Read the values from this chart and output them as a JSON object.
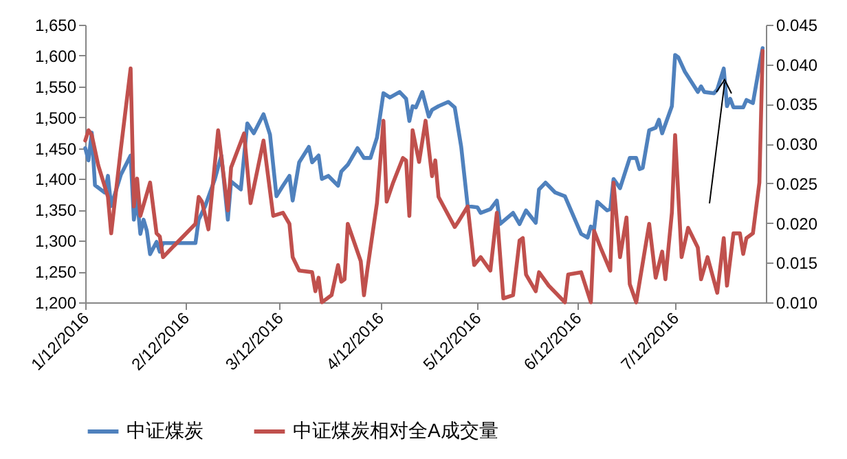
{
  "chart_data": {
    "type": "line",
    "legend": "bottom",
    "grid": false,
    "marker": "none",
    "line_style": "solid",
    "xlim": [
      "2016-01-12",
      "2016-08-09"
    ],
    "xticks": [
      {
        "value": "2016-01-12",
        "label": "1/12/2016"
      },
      {
        "value": "2016-02-12",
        "label": "2/12/2016"
      },
      {
        "value": "2016-03-12",
        "label": "3/12/2016"
      },
      {
        "value": "2016-04-12",
        "label": "4/12/2016"
      },
      {
        "value": "2016-05-12",
        "label": "5/12/2016"
      },
      {
        "value": "2016-06-12",
        "label": "6/12/2016"
      },
      {
        "value": "2016-07-12",
        "label": "7/12/2016"
      }
    ],
    "ylim": [
      1200,
      1650
    ],
    "yticks": [
      {
        "value": 1200,
        "label": "1,200"
      },
      {
        "value": 1250,
        "label": "1,250"
      },
      {
        "value": 1300,
        "label": "1,300"
      },
      {
        "value": 1350,
        "label": "1,350"
      },
      {
        "value": 1400,
        "label": "1,400"
      },
      {
        "value": 1450,
        "label": "1,450"
      },
      {
        "value": 1500,
        "label": "1,500"
      },
      {
        "value": 1550,
        "label": "1,550"
      },
      {
        "value": 1600,
        "label": "1,600"
      },
      {
        "value": 1650,
        "label": "1,650"
      }
    ],
    "y2lim": [
      0.01,
      0.045
    ],
    "y2ticks": [
      {
        "value": 0.01,
        "label": "0.010"
      },
      {
        "value": 0.015,
        "label": "0.015"
      },
      {
        "value": 0.02,
        "label": "0.020"
      },
      {
        "value": 0.025,
        "label": "0.025"
      },
      {
        "value": 0.03,
        "label": "0.030"
      },
      {
        "value": 0.035,
        "label": "0.035"
      },
      {
        "value": 0.04,
        "label": "0.040"
      },
      {
        "value": 0.045,
        "label": "0.045"
      }
    ],
    "series": [
      {
        "name": "中证煤炭",
        "color": "#4f81bd",
        "x": [
          "2016-01-12",
          "2016-01-13",
          "2016-01-14",
          "2016-01-15",
          "2016-01-18",
          "2016-01-19",
          "2016-01-20",
          "2016-01-23",
          "2016-01-26",
          "2016-01-27",
          "2016-01-28",
          "2016-01-29",
          "2016-01-30",
          "2016-01-31",
          "2016-02-01",
          "2016-02-03",
          "2016-02-04",
          "2016-02-05",
          "2016-02-15",
          "2016-02-16",
          "2016-02-18",
          "2016-02-21",
          "2016-02-23",
          "2016-02-25",
          "2016-02-26",
          "2016-02-29",
          "2016-03-02",
          "2016-03-04",
          "2016-03-07",
          "2016-03-09",
          "2016-03-11",
          "2016-03-13",
          "2016-03-15",
          "2016-03-16",
          "2016-03-18",
          "2016-03-21",
          "2016-03-22",
          "2016-03-24",
          "2016-03-25",
          "2016-03-27",
          "2016-03-30",
          "2016-03-31",
          "2016-04-02",
          "2016-04-05",
          "2016-04-07",
          "2016-04-09",
          "2016-04-11",
          "2016-04-13",
          "2016-04-15",
          "2016-04-18",
          "2016-04-20",
          "2016-04-21",
          "2016-04-22",
          "2016-04-23",
          "2016-04-25",
          "2016-04-27",
          "2016-04-28",
          "2016-04-30",
          "2016-05-03",
          "2016-05-05",
          "2016-05-07",
          "2016-05-09",
          "2016-05-12",
          "2016-05-13",
          "2016-05-16",
          "2016-05-18",
          "2016-05-19",
          "2016-05-23",
          "2016-05-25",
          "2016-05-27",
          "2016-05-30",
          "2016-05-31",
          "2016-06-02",
          "2016-06-05",
          "2016-06-08",
          "2016-06-13",
          "2016-06-15",
          "2016-06-16",
          "2016-06-17",
          "2016-06-18",
          "2016-06-21",
          "2016-06-22",
          "2016-06-23",
          "2016-06-25",
          "2016-06-28",
          "2016-06-30",
          "2016-07-01",
          "2016-07-02",
          "2016-07-04",
          "2016-07-06",
          "2016-07-07",
          "2016-07-08",
          "2016-07-11",
          "2016-07-12",
          "2016-07-13",
          "2016-07-15",
          "2016-07-19",
          "2016-07-20",
          "2016-07-21",
          "2016-07-24",
          "2016-07-25",
          "2016-07-27",
          "2016-07-28",
          "2016-07-29",
          "2016-07-30",
          "2016-08-02",
          "2016-08-03",
          "2016-08-05",
          "2016-08-07",
          "2016-08-08"
        ],
        "values": [
          1450,
          1430,
          1475,
          1390,
          1378,
          1405,
          1356,
          1407,
          1438,
          1334,
          1367,
          1311,
          1334,
          1316,
          1278,
          1298,
          1282,
          1296,
          1296,
          1334,
          1356,
          1400,
          1438,
          1334,
          1396,
          1383,
          1490,
          1474,
          1505,
          1472,
          1372,
          1389,
          1405,
          1365,
          1427,
          1452,
          1427,
          1438,
          1400,
          1405,
          1389,
          1412,
          1423,
          1450,
          1434,
          1434,
          1467,
          1539,
          1532,
          1541,
          1530,
          1494,
          1518,
          1516,
          1541,
          1501,
          1512,
          1518,
          1525,
          1516,
          1452,
          1356,
          1354,
          1345,
          1351,
          1365,
          1327,
          1345,
          1327,
          1349,
          1329,
          1383,
          1394,
          1378,
          1372,
          1311,
          1305,
          1323,
          1318,
          1363,
          1349,
          1351,
          1400,
          1385,
          1434,
          1434,
          1416,
          1418,
          1479,
          1483,
          1496,
          1474,
          1518,
          1601,
          1597,
          1574,
          1541,
          1550,
          1541,
          1539,
          1545,
          1579,
          1518,
          1530,
          1516,
          1516,
          1528,
          1523,
          1583,
          1612
        ]
      },
      {
        "name": "中证煤炭相对全A成交量",
        "color": "#c0504d",
        "axis": "y2",
        "x": [
          "2016-01-12",
          "2016-01-13",
          "2016-01-14",
          "2016-01-16",
          "2016-01-19",
          "2016-01-20",
          "2016-01-23",
          "2016-01-26",
          "2016-01-27",
          "2016-01-28",
          "2016-01-29",
          "2016-02-01",
          "2016-02-03",
          "2016-02-04",
          "2016-02-05",
          "2016-02-15",
          "2016-02-16",
          "2016-02-17",
          "2016-02-19",
          "2016-02-22",
          "2016-02-25",
          "2016-02-26",
          "2016-03-01",
          "2016-03-03",
          "2016-03-07",
          "2016-03-10",
          "2016-03-13",
          "2016-03-15",
          "2016-03-16",
          "2016-03-18",
          "2016-03-22",
          "2016-03-23",
          "2016-03-24",
          "2016-03-25",
          "2016-03-28",
          "2016-03-30",
          "2016-03-31",
          "2016-04-01",
          "2016-04-02",
          "2016-04-06",
          "2016-04-07",
          "2016-04-08",
          "2016-04-11",
          "2016-04-13",
          "2016-04-14",
          "2016-04-16",
          "2016-04-19",
          "2016-04-20",
          "2016-04-21",
          "2016-04-22",
          "2016-04-24",
          "2016-04-26",
          "2016-04-28",
          "2016-04-29",
          "2016-04-30",
          "2016-05-05",
          "2016-05-06",
          "2016-05-09",
          "2016-05-11",
          "2016-05-13",
          "2016-05-16",
          "2016-05-18",
          "2016-05-20",
          "2016-05-23",
          "2016-05-25",
          "2016-05-26",
          "2016-05-27",
          "2016-05-30",
          "2016-05-31",
          "2016-06-03",
          "2016-06-08",
          "2016-06-09",
          "2016-06-13",
          "2016-06-16",
          "2016-06-17",
          "2016-06-19",
          "2016-06-22",
          "2016-06-23",
          "2016-06-25",
          "2016-06-27",
          "2016-06-28",
          "2016-06-30",
          "2016-07-04",
          "2016-07-06",
          "2016-07-08",
          "2016-07-09",
          "2016-07-11",
          "2016-07-12",
          "2016-07-14",
          "2016-07-16",
          "2016-07-19",
          "2016-07-20",
          "2016-07-22",
          "2016-07-25",
          "2016-07-27",
          "2016-07-28",
          "2016-07-30",
          "2016-08-01",
          "2016-08-02",
          "2016-08-03",
          "2016-08-05",
          "2016-08-07",
          "2016-08-08"
        ],
        "values": [
          0.0304,
          0.0317,
          0.0311,
          0.0273,
          0.0233,
          0.0187,
          0.0294,
          0.0395,
          0.0221,
          0.0256,
          0.0209,
          0.0251,
          0.0187,
          0.0183,
          0.0157,
          0.0199,
          0.0233,
          0.0227,
          0.0192,
          0.0317,
          0.0216,
          0.027,
          0.0313,
          0.0225,
          0.0304,
          0.0209,
          0.0213,
          0.0199,
          0.0157,
          0.014,
          0.0138,
          0.0114,
          0.0131,
          0.01,
          0.0109,
          0.0147,
          0.0126,
          0.0129,
          0.0199,
          0.0152,
          0.0109,
          0.014,
          0.0225,
          0.0329,
          0.0227,
          0.0251,
          0.0282,
          0.0279,
          0.0209,
          0.0317,
          0.0277,
          0.0329,
          0.0259,
          0.0279,
          0.0233,
          0.0195,
          0.0201,
          0.0221,
          0.0147,
          0.0157,
          0.014,
          0.0213,
          0.0105,
          0.0109,
          0.0178,
          0.0181,
          0.0135,
          0.0114,
          0.0138,
          0.0121,
          0.01,
          0.0135,
          0.0138,
          0.01,
          0.019,
          0.0169,
          0.014,
          0.0251,
          0.0157,
          0.0207,
          0.0123,
          0.01,
          0.0199,
          0.0131,
          0.0164,
          0.0129,
          0.0213,
          0.0311,
          0.0157,
          0.0194,
          0.0169,
          0.0129,
          0.0157,
          0.0112,
          0.0181,
          0.0121,
          0.0187,
          0.0187,
          0.0161,
          0.0181,
          0.0187,
          0.0251,
          0.0417
        ]
      }
    ]
  }
}
